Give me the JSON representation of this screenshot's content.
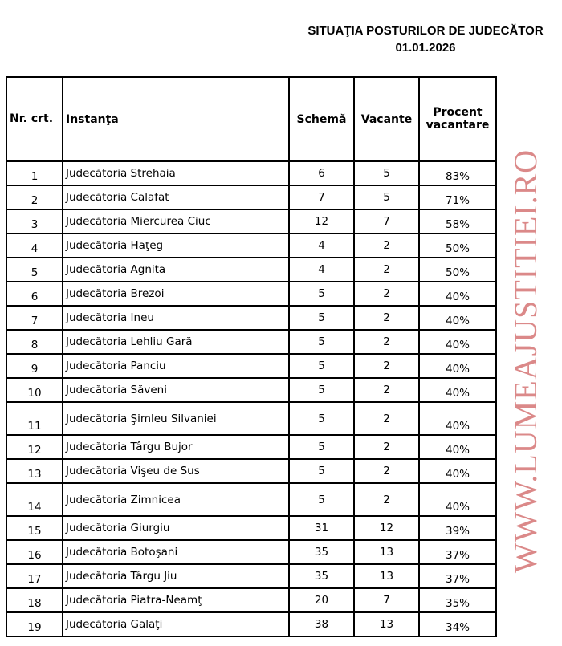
{
  "title": "SITUAŢIA POSTURILOR DE JUDECĂTOR",
  "date": "01.01.2026",
  "watermark": "WWW.LUMEAJUSTITIEI.RO",
  "headers": [
    "Nr. crt.",
    "Instanţa",
    "Schemă",
    "Vacante",
    "Procent vacantare"
  ],
  "rows": [
    [
      "1",
      "Judecătoria Strehaia",
      "6",
      "5",
      "83%"
    ],
    [
      "2",
      "Judecătoria Calafat",
      "7",
      "5",
      "71%"
    ],
    [
      "3",
      "Judecătoria Miercurea Ciuc",
      "12",
      "7",
      "58%"
    ],
    [
      "4",
      "Judecătoria Haţeg",
      "4",
      "2",
      "50%"
    ],
    [
      "5",
      "Judecătoria Agnita",
      "4",
      "2",
      "50%"
    ],
    [
      "6",
      "Judecătoria Brezoi",
      "5",
      "2",
      "40%"
    ],
    [
      "7",
      "Judecătoria Ineu",
      "5",
      "2",
      "40%"
    ],
    [
      "8",
      "Judecătoria Lehliu Gară",
      "5",
      "2",
      "40%"
    ],
    [
      "9",
      "Judecătoria Panciu",
      "5",
      "2",
      "40%"
    ],
    [
      "10",
      "Judecătoria Săveni",
      "5",
      "2",
      "40%"
    ],
    [
      "11",
      "Judecătoria Şimleu Silvaniei",
      "5",
      "2",
      "40%"
    ],
    [
      "12",
      "Judecătoria Târgu Bujor",
      "5",
      "2",
      "40%"
    ],
    [
      "13",
      "Judecătoria Vişeu de Sus",
      "5",
      "2",
      "40%"
    ],
    [
      "14",
      "Judecătoria Zimnicea",
      "5",
      "2",
      "40%"
    ],
    [
      "15",
      "Judecătoria Giurgiu",
      "31",
      "12",
      "39%"
    ],
    [
      "16",
      "Judecătoria Botoşani",
      "35",
      "13",
      "37%"
    ],
    [
      "17",
      "Judecătoria Târgu Jiu",
      "35",
      "13",
      "37%"
    ],
    [
      "18",
      "Judecătoria Piatra-Neamţ",
      "20",
      "7",
      "35%"
    ],
    [
      "19",
      "Judecătoria Galaţi",
      "38",
      "13",
      "34%"
    ]
  ]
}
